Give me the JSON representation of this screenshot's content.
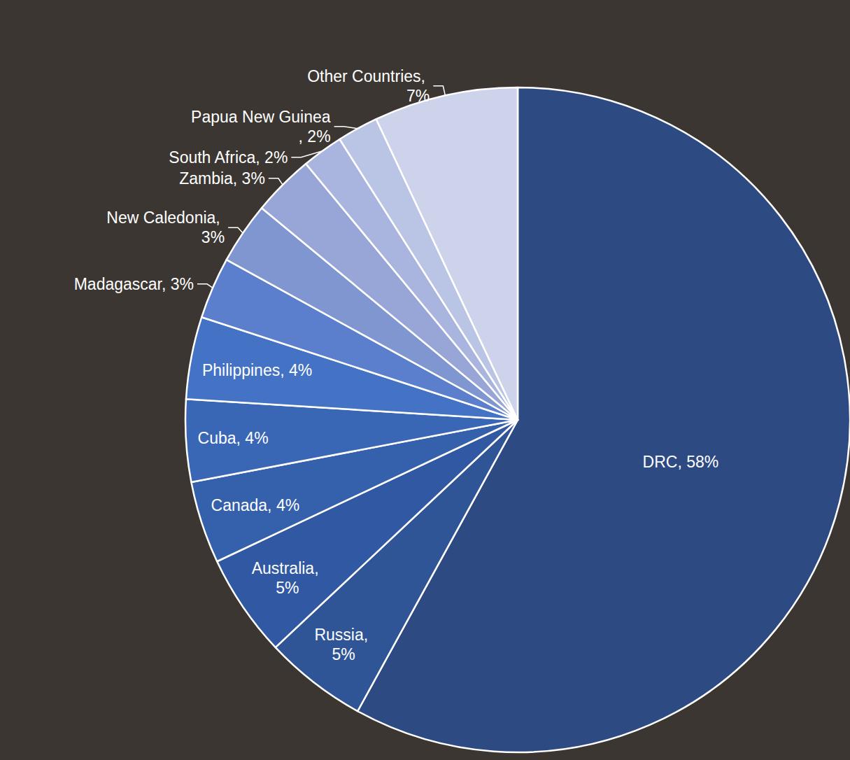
{
  "chart_data": {
    "type": "pie",
    "categories": [
      "DRC",
      "Russia",
      "Australia",
      "Canada",
      "Cuba",
      "Philippines",
      "Madagascar",
      "New Caledonia",
      "Zambia",
      "South Africa",
      "Papua New Guinea",
      "Other Countries"
    ],
    "values": [
      58,
      5,
      5,
      4,
      4,
      4,
      3,
      3,
      3,
      2,
      2,
      7
    ],
    "value_labels": [
      "DRC, 58%",
      "Russia, 5%",
      "Australia, 5%",
      "Canada, 4%",
      "Cuba, 4%",
      "Philippines, 4%",
      "Madagascar, 3%",
      "New Caledonia, 3%",
      "Zambia, 3%",
      "South Africa, 2%",
      "Papua New Guinea, 2%",
      "Other Countries, 7%"
    ],
    "colors": [
      "#2e4a82",
      "#2f5597",
      "#3158a2",
      "#3560ac",
      "#3a66b6",
      "#4472c4",
      "#5b7fcc",
      "#7f96d0",
      "#97a6d6",
      "#a9b5de",
      "#bac4e4",
      "#cdd3ea"
    ],
    "data_labels": true
  }
}
